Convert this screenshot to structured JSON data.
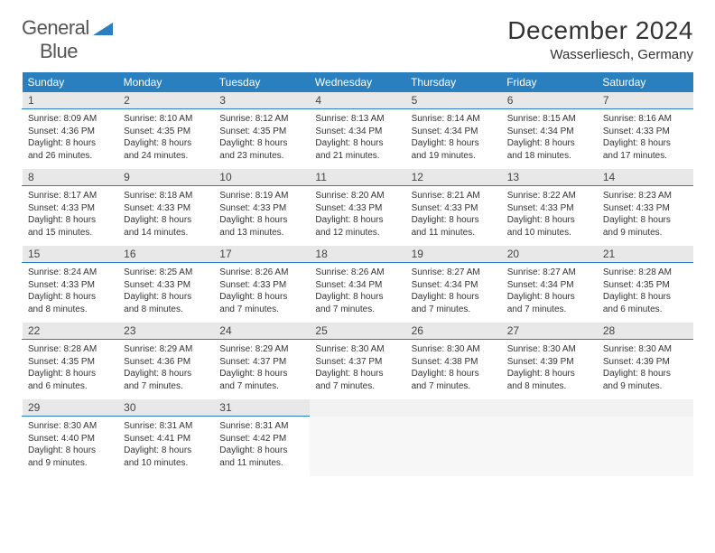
{
  "brand": {
    "part1": "General",
    "part2": "Blue"
  },
  "title": "December 2024",
  "location": "Wasserliesch, Germany",
  "colors": {
    "header_bg": "#2a7fbf",
    "header_text": "#ffffff",
    "daynum_bg": "#e8e8e8",
    "daynum_border": "#2a7fbf",
    "blank_bg": "#f2f2f2",
    "body_text": "#333333"
  },
  "day_names": [
    "Sunday",
    "Monday",
    "Tuesday",
    "Wednesday",
    "Thursday",
    "Friday",
    "Saturday"
  ],
  "weeks": [
    [
      {
        "n": "1",
        "sr": "8:09 AM",
        "ss": "4:36 PM",
        "dl": "8 hours and 26 minutes."
      },
      {
        "n": "2",
        "sr": "8:10 AM",
        "ss": "4:35 PM",
        "dl": "8 hours and 24 minutes."
      },
      {
        "n": "3",
        "sr": "8:12 AM",
        "ss": "4:35 PM",
        "dl": "8 hours and 23 minutes."
      },
      {
        "n": "4",
        "sr": "8:13 AM",
        "ss": "4:34 PM",
        "dl": "8 hours and 21 minutes."
      },
      {
        "n": "5",
        "sr": "8:14 AM",
        "ss": "4:34 PM",
        "dl": "8 hours and 19 minutes."
      },
      {
        "n": "6",
        "sr": "8:15 AM",
        "ss": "4:34 PM",
        "dl": "8 hours and 18 minutes."
      },
      {
        "n": "7",
        "sr": "8:16 AM",
        "ss": "4:33 PM",
        "dl": "8 hours and 17 minutes."
      }
    ],
    [
      {
        "n": "8",
        "sr": "8:17 AM",
        "ss": "4:33 PM",
        "dl": "8 hours and 15 minutes."
      },
      {
        "n": "9",
        "sr": "8:18 AM",
        "ss": "4:33 PM",
        "dl": "8 hours and 14 minutes."
      },
      {
        "n": "10",
        "sr": "8:19 AM",
        "ss": "4:33 PM",
        "dl": "8 hours and 13 minutes."
      },
      {
        "n": "11",
        "sr": "8:20 AM",
        "ss": "4:33 PM",
        "dl": "8 hours and 12 minutes."
      },
      {
        "n": "12",
        "sr": "8:21 AM",
        "ss": "4:33 PM",
        "dl": "8 hours and 11 minutes."
      },
      {
        "n": "13",
        "sr": "8:22 AM",
        "ss": "4:33 PM",
        "dl": "8 hours and 10 minutes."
      },
      {
        "n": "14",
        "sr": "8:23 AM",
        "ss": "4:33 PM",
        "dl": "8 hours and 9 minutes."
      }
    ],
    [
      {
        "n": "15",
        "sr": "8:24 AM",
        "ss": "4:33 PM",
        "dl": "8 hours and 8 minutes."
      },
      {
        "n": "16",
        "sr": "8:25 AM",
        "ss": "4:33 PM",
        "dl": "8 hours and 8 minutes."
      },
      {
        "n": "17",
        "sr": "8:26 AM",
        "ss": "4:33 PM",
        "dl": "8 hours and 7 minutes."
      },
      {
        "n": "18",
        "sr": "8:26 AM",
        "ss": "4:34 PM",
        "dl": "8 hours and 7 minutes."
      },
      {
        "n": "19",
        "sr": "8:27 AM",
        "ss": "4:34 PM",
        "dl": "8 hours and 7 minutes."
      },
      {
        "n": "20",
        "sr": "8:27 AM",
        "ss": "4:34 PM",
        "dl": "8 hours and 7 minutes."
      },
      {
        "n": "21",
        "sr": "8:28 AM",
        "ss": "4:35 PM",
        "dl": "8 hours and 6 minutes."
      }
    ],
    [
      {
        "n": "22",
        "sr": "8:28 AM",
        "ss": "4:35 PM",
        "dl": "8 hours and 6 minutes."
      },
      {
        "n": "23",
        "sr": "8:29 AM",
        "ss": "4:36 PM",
        "dl": "8 hours and 7 minutes."
      },
      {
        "n": "24",
        "sr": "8:29 AM",
        "ss": "4:37 PM",
        "dl": "8 hours and 7 minutes."
      },
      {
        "n": "25",
        "sr": "8:30 AM",
        "ss": "4:37 PM",
        "dl": "8 hours and 7 minutes."
      },
      {
        "n": "26",
        "sr": "8:30 AM",
        "ss": "4:38 PM",
        "dl": "8 hours and 7 minutes."
      },
      {
        "n": "27",
        "sr": "8:30 AM",
        "ss": "4:39 PM",
        "dl": "8 hours and 8 minutes."
      },
      {
        "n": "28",
        "sr": "8:30 AM",
        "ss": "4:39 PM",
        "dl": "8 hours and 9 minutes."
      }
    ],
    [
      {
        "n": "29",
        "sr": "8:30 AM",
        "ss": "4:40 PM",
        "dl": "8 hours and 9 minutes."
      },
      {
        "n": "30",
        "sr": "8:31 AM",
        "ss": "4:41 PM",
        "dl": "8 hours and 10 minutes."
      },
      {
        "n": "31",
        "sr": "8:31 AM",
        "ss": "4:42 PM",
        "dl": "8 hours and 11 minutes."
      },
      null,
      null,
      null,
      null
    ]
  ],
  "labels": {
    "sunrise": "Sunrise:",
    "sunset": "Sunset:",
    "daylight": "Daylight:"
  }
}
